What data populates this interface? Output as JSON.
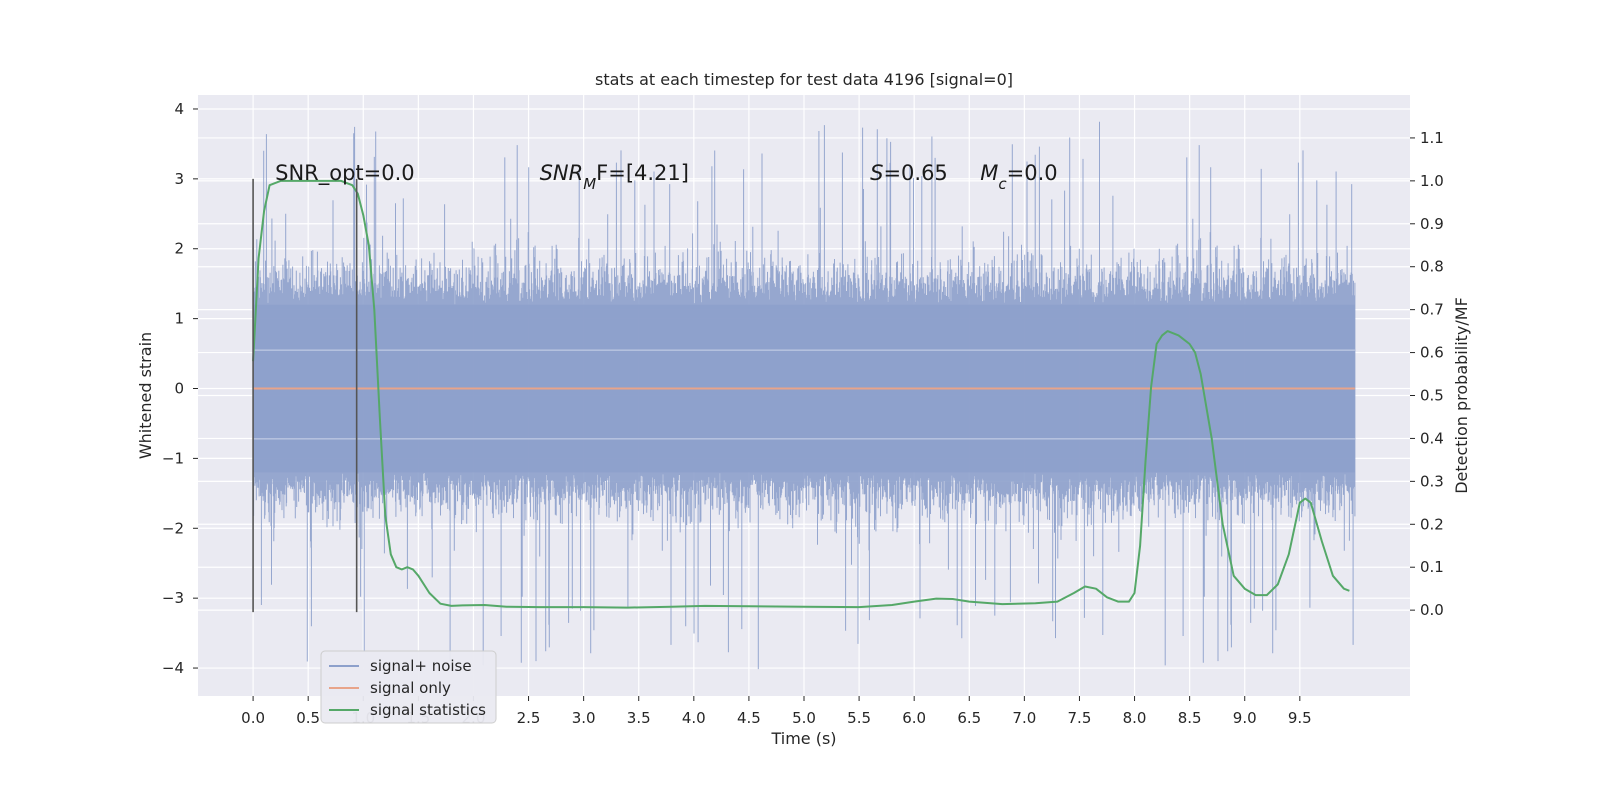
{
  "chart_data": {
    "type": "line",
    "title": "stats at each timestep for test data 4196 [signal=0]",
    "xlabel": "Time (s)",
    "ylabel": "Whitened strain",
    "y2label": "Detection probability/MF",
    "xlim": [
      -0.5,
      10.5
    ],
    "ylim": [
      -4.4,
      4.2
    ],
    "y2lim": [
      -0.2,
      1.2
    ],
    "xticks": [
      "0.0",
      "0.5",
      "1.0",
      "1.5",
      "2.0",
      "2.5",
      "3.0",
      "3.5",
      "4.0",
      "4.5",
      "5.0",
      "5.5",
      "6.0",
      "6.5",
      "7.0",
      "7.5",
      "8.0",
      "8.5",
      "9.0",
      "9.5"
    ],
    "yticks": [
      "−4",
      "−3",
      "−2",
      "−1",
      "0",
      "1",
      "2",
      "3",
      "4"
    ],
    "y2ticks": [
      "0.0",
      "0.1",
      "0.2",
      "0.3",
      "0.4",
      "0.5",
      "0.6",
      "0.7",
      "0.8",
      "0.9",
      "1.0",
      "1.1"
    ],
    "grid": true,
    "legend_position": "lower-left",
    "annotations": [
      {
        "text": "SNR_opt=0.0",
        "x": 0.2,
        "y": 3.1
      },
      {
        "text": "SNR",
        "sub": "M",
        "rest": "F=[4.21]",
        "x": 2.6,
        "y": 3.1
      },
      {
        "text": "S",
        "rest": "=0.65",
        "x": 5.6,
        "y": 3.1
      },
      {
        "text": "M",
        "sub": "c",
        "rest": "=0.0",
        "x": 6.6,
        "y": 3.1
      }
    ],
    "vlines": [
      {
        "x": 0.0,
        "ymin": -3.2,
        "ymax": 3.0
      },
      {
        "x": 0.94,
        "ymin": -3.2,
        "ymax": 3.0
      }
    ],
    "series": [
      {
        "name": "signal+ noise",
        "color": "#8da0cb",
        "noise": {
          "t_start": 0.0,
          "t_end": 10.0,
          "typical_amplitude": 1.2,
          "max": 3.85,
          "min": -4.05
        }
      },
      {
        "name": "signal only",
        "color": "#e8a48a",
        "x": [
          0.0,
          10.0
        ],
        "y": [
          0.0,
          0.0
        ]
      },
      {
        "name": "signal statistics",
        "color": "#55a868",
        "axis": "y2",
        "x": [
          0.0,
          0.05,
          0.1,
          0.15,
          0.25,
          0.4,
          0.6,
          0.8,
          0.9,
          0.95,
          1.0,
          1.05,
          1.1,
          1.15,
          1.2,
          1.25,
          1.3,
          1.35,
          1.4,
          1.45,
          1.5,
          1.6,
          1.7,
          1.8,
          1.9,
          2.1,
          2.3,
          2.6,
          3.0,
          3.4,
          3.8,
          4.1,
          4.5,
          5.0,
          5.5,
          5.8,
          6.0,
          6.2,
          6.35,
          6.5,
          6.8,
          7.1,
          7.3,
          7.45,
          7.55,
          7.65,
          7.75,
          7.85,
          7.95,
          8.0,
          8.05,
          8.1,
          8.15,
          8.2,
          8.25,
          8.3,
          8.4,
          8.5,
          8.55,
          8.6,
          8.7,
          8.8,
          8.9,
          9.0,
          9.1,
          9.2,
          9.3,
          9.4,
          9.5,
          9.55,
          9.6,
          9.7,
          9.8,
          9.9,
          9.95
        ],
        "y": [
          0.58,
          0.82,
          0.93,
          0.99,
          1.0,
          1.0,
          1.0,
          1.0,
          0.99,
          0.97,
          0.92,
          0.85,
          0.7,
          0.45,
          0.22,
          0.13,
          0.1,
          0.095,
          0.1,
          0.095,
          0.08,
          0.04,
          0.015,
          0.01,
          0.011,
          0.012,
          0.008,
          0.007,
          0.007,
          0.006,
          0.008,
          0.01,
          0.009,
          0.008,
          0.007,
          0.012,
          0.02,
          0.027,
          0.026,
          0.02,
          0.014,
          0.016,
          0.02,
          0.04,
          0.055,
          0.05,
          0.03,
          0.02,
          0.02,
          0.04,
          0.15,
          0.35,
          0.52,
          0.62,
          0.64,
          0.65,
          0.64,
          0.62,
          0.6,
          0.55,
          0.4,
          0.2,
          0.08,
          0.05,
          0.035,
          0.035,
          0.06,
          0.13,
          0.25,
          0.26,
          0.25,
          0.16,
          0.08,
          0.05,
          0.045
        ]
      }
    ]
  }
}
